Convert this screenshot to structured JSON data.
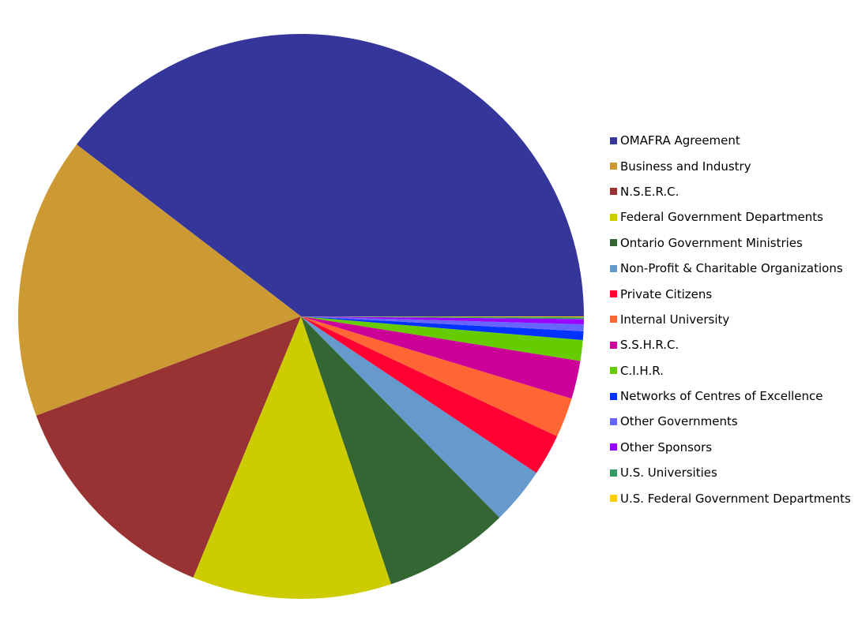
{
  "chart_data": {
    "type": "pie",
    "title": "",
    "legend_position": "right",
    "series": [
      {
        "name": "OMAFRA Agreement",
        "value": 40.0,
        "color": "#35369a"
      },
      {
        "name": "Business and Industry",
        "value": 16.3,
        "color": "#cc9933"
      },
      {
        "name": "N.S.E.R.C.",
        "value": 13.2,
        "color": "#993333"
      },
      {
        "name": "Federal Government Departments",
        "value": 11.5,
        "color": "#cccc00"
      },
      {
        "name": "Ontario Government Ministries",
        "value": 7.3,
        "color": "#336633"
      },
      {
        "name": "Non-Profit & Charitable Organizations",
        "value": 3.3,
        "color": "#6699cc"
      },
      {
        "name": "Private Citizens",
        "value": 2.4,
        "color": "#ff0033"
      },
      {
        "name": "Internal University",
        "value": 2.3,
        "color": "#ff6633"
      },
      {
        "name": "S.S.H.R.C.",
        "value": 2.2,
        "color": "#cc0099"
      },
      {
        "name": "C.I.H.R.",
        "value": 1.2,
        "color": "#66cc00"
      },
      {
        "name": "Networks of Centres of Excellence",
        "value": 0.5,
        "color": "#0033ff"
      },
      {
        "name": "Other Governments",
        "value": 0.4,
        "color": "#6666ff"
      },
      {
        "name": "Other Sponsors",
        "value": 0.3,
        "color": "#9900ff"
      },
      {
        "name": "U.S. Universities",
        "value": 0.1,
        "color": "#339966"
      },
      {
        "name": "U.S. Federal Government Departments",
        "value": 0.05,
        "color": "#ffcc00"
      }
    ]
  }
}
